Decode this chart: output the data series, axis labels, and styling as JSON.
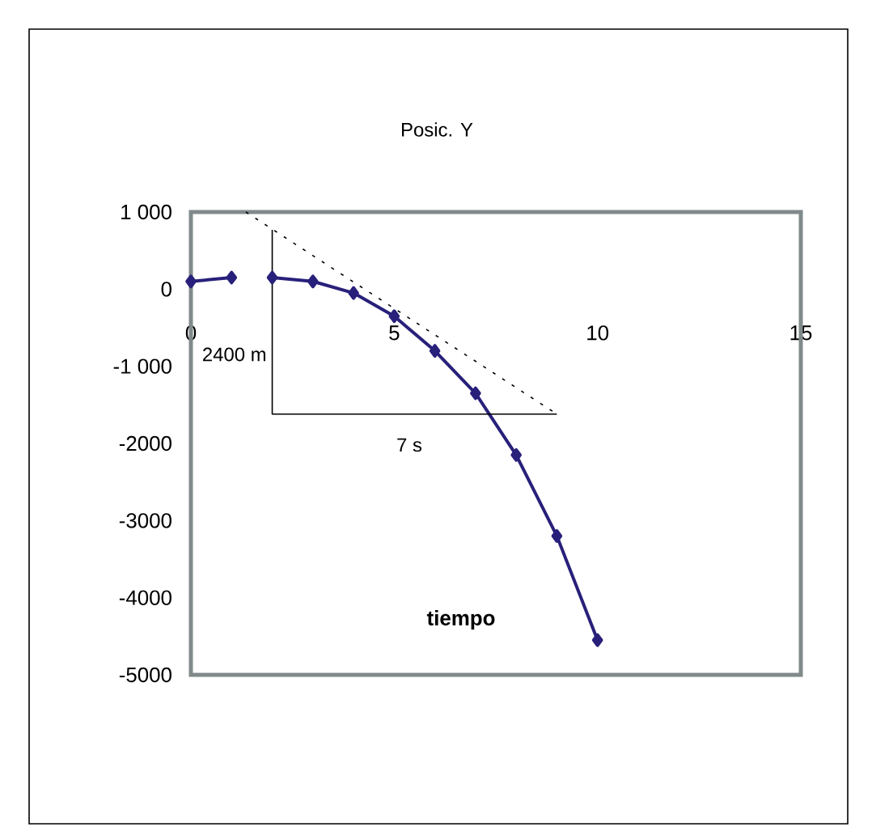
{
  "chart_data": {
    "type": "line",
    "title": "Posic. Y",
    "xlabel": "tiempo",
    "xlim": [
      0,
      15
    ],
    "xticks": [
      0,
      5,
      10,
      15
    ],
    "ylim": [
      -5000,
      1000
    ],
    "yticks": [
      {
        "value": -5000,
        "label": "-5000"
      },
      {
        "value": -4000,
        "label": "-4000"
      },
      {
        "value": -3000,
        "label": "-3000"
      },
      {
        "value": -2000,
        "label": "-2000"
      },
      {
        "value": -1000,
        "label": "-1 000"
      },
      {
        "value": 0,
        "label": "0"
      },
      {
        "value": 1000,
        "label": "1 000"
      }
    ],
    "grid": false,
    "series": [
      {
        "color": "#28207a",
        "marker": "diamond",
        "line_style": "solid",
        "x": [
          0,
          1,
          1.5,
          2,
          3,
          4,
          5,
          6,
          7,
          8,
          9,
          10
        ],
        "values": [
          100,
          150,
          null,
          150,
          100,
          -50,
          -350,
          -800,
          -1350,
          -2150,
          -3200,
          -4550
        ]
      },
      {
        "color": "#000000",
        "marker": "none",
        "line_style": "dotted",
        "x": [
          1.35,
          9
        ],
        "values": [
          1000,
          -1620
        ]
      },
      {
        "color": "#000000",
        "marker": "none",
        "line_style": "solid",
        "x": [
          2,
          2,
          9
        ],
        "values": [
          770,
          -1620,
          -1620
        ]
      }
    ],
    "annotations": [
      "2400 m",
      "7 s"
    ]
  }
}
